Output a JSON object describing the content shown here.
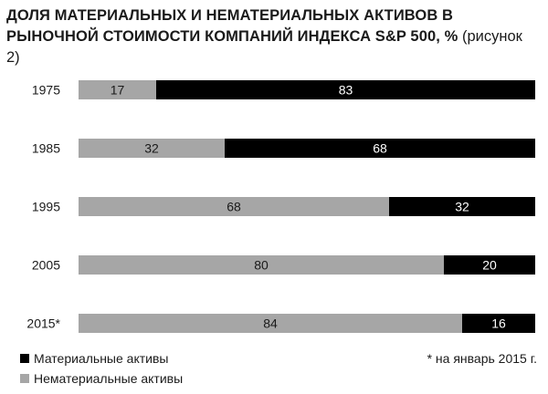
{
  "title": {
    "main": "Доля материальных и нематериальных активов в рыночной стоимости компаний индекса S&P 500, %",
    "sub": "(рисунок 2)"
  },
  "footnote": "* на январь 2015 г.",
  "chart_data": {
    "type": "bar",
    "orientation": "horizontal",
    "stacked": true,
    "percent_scale": [
      0,
      100
    ],
    "categories": [
      "1975",
      "1985",
      "1995",
      "2005",
      "2015*"
    ],
    "series": [
      {
        "name": "Нематериальные активы",
        "color": "#a6a6a6",
        "label_color": "#1a1a1a",
        "values": [
          17,
          32,
          68,
          80,
          84
        ]
      },
      {
        "name": "Материальные активы",
        "color": "#000000",
        "label_color": "#ffffff",
        "values": [
          83,
          68,
          32,
          20,
          16
        ]
      }
    ],
    "legend": {
      "position": "bottom-left",
      "items": [
        "Материальные активы",
        "Нематериальные активы"
      ],
      "colors": [
        "#000000",
        "#a6a6a6"
      ]
    },
    "grid": false
  }
}
